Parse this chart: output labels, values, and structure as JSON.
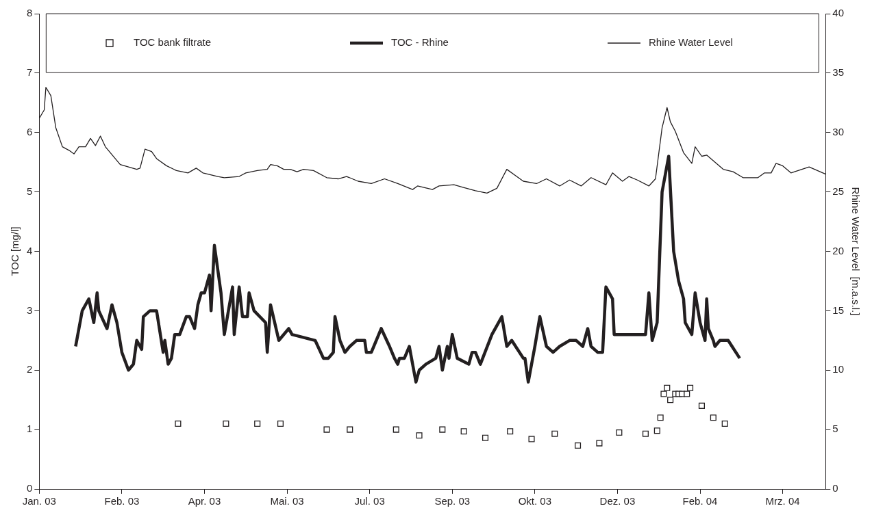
{
  "chart_data": {
    "type": "line",
    "ylabel": "TOC [mg/l]",
    "y2label": "Rhine Water Level  [m.a.s.l.]",
    "xlim": [
      "2003-01-01",
      "2004-04-21"
    ],
    "xticks": [
      {
        "value": "2003-01-01",
        "label": "Jan. 03"
      },
      {
        "value": "2003-02-20",
        "label": "Feb. 03"
      },
      {
        "value": "2003-04-11",
        "label": "Apr. 03"
      },
      {
        "value": "2003-05-31",
        "label": "Mai. 03"
      },
      {
        "value": "2003-07-20",
        "label": "Jul. 03"
      },
      {
        "value": "2003-09-08",
        "label": "Sep. 03"
      },
      {
        "value": "2003-10-28",
        "label": "Okt. 03"
      },
      {
        "value": "2003-12-17",
        "label": "Dez. 03"
      },
      {
        "value": "2004-02-05",
        "label": "Feb. 04"
      },
      {
        "value": "2004-03-26",
        "label": "Mrz. 04"
      }
    ],
    "ylim": [
      0,
      8
    ],
    "yticks": [
      0,
      1,
      2,
      3,
      4,
      5,
      6,
      7,
      8
    ],
    "y2lim": [
      0,
      40
    ],
    "y2ticks": [
      0,
      5,
      10,
      15,
      20,
      25,
      30,
      35,
      40
    ],
    "grid": false,
    "legend": "top",
    "series": [
      {
        "name": "TOC bank filtrate",
        "type": "scatter",
        "marker": "square",
        "color": "#231f20",
        "x": [
          "2003-03-26",
          "2003-04-24",
          "2003-05-13",
          "2003-05-27",
          "2003-06-24",
          "2003-07-08",
          "2003-08-05",
          "2003-08-19",
          "2003-09-02",
          "2003-09-15",
          "2003-09-28",
          "2003-10-13",
          "2003-10-26",
          "2003-11-09",
          "2003-11-23",
          "2003-12-06",
          "2003-12-18",
          "2004-01-03",
          "2004-01-10",
          "2004-01-12",
          "2004-01-14",
          "2004-01-16",
          "2004-01-18",
          "2004-01-21",
          "2004-01-23",
          "2004-01-25",
          "2004-01-28",
          "2004-01-30",
          "2004-02-06",
          "2004-02-13",
          "2004-02-20"
        ],
        "values": [
          1.1,
          1.1,
          1.1,
          1.1,
          1.0,
          1.0,
          1.0,
          0.9,
          1.0,
          0.97,
          0.86,
          0.97,
          0.84,
          0.93,
          0.73,
          0.77,
          0.95,
          0.93,
          0.98,
          1.2,
          1.6,
          1.7,
          1.5,
          1.6,
          1.6,
          1.6,
          1.6,
          1.7,
          1.4,
          1.2,
          1.1
        ]
      },
      {
        "name": "TOC - Rhine",
        "type": "line",
        "marker": "none",
        "color": "#231f20",
        "x": [
          "2003-01-23",
          "2003-01-27",
          "2003-01-31",
          "2003-02-03",
          "2003-02-05",
          "2003-02-06",
          "2003-02-11",
          "2003-02-14",
          "2003-02-17",
          "2003-02-20",
          "2003-02-24",
          "2003-02-27",
          "2003-03-01",
          "2003-03-04",
          "2003-03-05",
          "2003-03-09",
          "2003-03-13",
          "2003-03-17",
          "2003-03-18",
          "2003-03-20",
          "2003-03-22",
          "2003-03-24",
          "2003-03-27",
          "2003-03-31",
          "2003-04-02",
          "2003-04-05",
          "2003-04-07",
          "2003-04-09",
          "2003-04-11",
          "2003-04-14",
          "2003-04-15",
          "2003-04-17",
          "2003-04-21",
          "2003-04-23",
          "2003-04-28",
          "2003-04-29",
          "2003-05-02",
          "2003-05-04",
          "2003-05-07",
          "2003-05-08",
          "2003-05-11",
          "2003-05-18",
          "2003-05-19",
          "2003-05-21",
          "2003-05-26",
          "2003-06-01",
          "2003-06-03",
          "2003-06-17",
          "2003-06-22",
          "2003-06-25",
          "2003-06-28",
          "2003-06-29",
          "2003-07-02",
          "2003-07-05",
          "2003-07-08",
          "2003-07-12",
          "2003-07-17",
          "2003-07-18",
          "2003-07-21",
          "2003-07-27",
          "2003-08-01",
          "2003-08-04",
          "2003-08-06",
          "2003-08-07",
          "2003-08-10",
          "2003-08-13",
          "2003-08-15",
          "2003-08-17",
          "2003-08-19",
          "2003-08-23",
          "2003-08-29",
          "2003-08-31",
          "2003-09-02",
          "2003-09-05",
          "2003-09-06",
          "2003-09-08",
          "2003-09-11",
          "2003-09-18",
          "2003-09-20",
          "2003-09-22",
          "2003-09-25",
          "2003-10-02",
          "2003-10-08",
          "2003-10-11",
          "2003-10-14",
          "2003-10-21",
          "2003-10-22",
          "2003-10-24",
          "2003-10-28",
          "2003-10-31",
          "2003-11-04",
          "2003-11-08",
          "2003-11-12",
          "2003-11-18",
          "2003-11-22",
          "2003-11-26",
          "2003-11-29",
          "2003-12-01",
          "2003-12-05",
          "2003-12-08",
          "2003-12-10",
          "2003-12-14",
          "2003-12-15",
          "2004-01-03",
          "2004-01-05",
          "2004-01-07",
          "2004-01-10",
          "2004-01-13",
          "2004-01-17",
          "2004-01-20",
          "2004-01-23",
          "2004-01-26",
          "2004-01-27",
          "2004-01-31",
          "2004-02-02",
          "2004-02-05",
          "2004-02-08",
          "2004-02-09",
          "2004-02-10",
          "2004-02-13",
          "2004-02-14",
          "2004-02-17",
          "2004-02-22",
          "2004-02-29"
        ],
        "values": [
          2.4,
          3.0,
          3.2,
          2.8,
          3.3,
          3.0,
          2.7,
          3.1,
          2.8,
          2.3,
          2.0,
          2.1,
          2.5,
          2.35,
          2.9,
          3.0,
          3.0,
          2.3,
          2.5,
          2.1,
          2.2,
          2.6,
          2.6,
          2.9,
          2.9,
          2.7,
          3.1,
          3.3,
          3.3,
          3.6,
          3.0,
          4.1,
          3.3,
          2.6,
          3.4,
          2.6,
          3.4,
          2.9,
          2.9,
          3.3,
          3.0,
          2.8,
          2.3,
          3.1,
          2.5,
          2.7,
          2.6,
          2.5,
          2.2,
          2.2,
          2.3,
          2.9,
          2.5,
          2.3,
          2.4,
          2.5,
          2.5,
          2.3,
          2.3,
          2.7,
          2.4,
          2.2,
          2.1,
          2.2,
          2.2,
          2.4,
          2.1,
          1.8,
          2.0,
          2.1,
          2.2,
          2.4,
          2.0,
          2.4,
          2.2,
          2.6,
          2.2,
          2.1,
          2.3,
          2.3,
          2.1,
          2.6,
          2.9,
          2.4,
          2.5,
          2.2,
          2.2,
          1.8,
          2.4,
          2.9,
          2.4,
          2.3,
          2.4,
          2.5,
          2.5,
          2.4,
          2.7,
          2.4,
          2.3,
          2.3,
          3.4,
          3.2,
          2.6,
          2.6,
          3.3,
          2.5,
          2.8,
          5.0,
          5.6,
          4.0,
          3.5,
          3.2,
          2.8,
          2.6,
          3.3,
          2.8,
          2.5,
          3.2,
          2.7,
          2.5,
          2.4,
          2.5,
          2.5,
          2.2
        ]
      },
      {
        "name": "Rhine Water Level",
        "type": "line",
        "marker": "none",
        "axis": "y2",
        "color": "#231f20",
        "x": [
          "2003-01-01",
          "2003-01-04",
          "2003-01-05",
          "2003-01-08",
          "2003-01-11",
          "2003-01-15",
          "2003-01-19",
          "2003-01-22",
          "2003-01-25",
          "2003-01-29",
          "2003-02-01",
          "2003-02-04",
          "2003-02-07",
          "2003-02-10",
          "2003-02-19",
          "2003-03-01",
          "2003-03-03",
          "2003-03-06",
          "2003-03-10",
          "2003-03-13",
          "2003-03-19",
          "2003-03-25",
          "2003-04-01",
          "2003-04-06",
          "2003-04-10",
          "2003-04-19",
          "2003-04-23",
          "2003-05-02",
          "2003-05-06",
          "2003-05-13",
          "2003-05-19",
          "2003-05-21",
          "2003-05-25",
          "2003-05-29",
          "2003-06-02",
          "2003-06-06",
          "2003-06-10",
          "2003-06-16",
          "2003-06-24",
          "2003-07-01",
          "2003-07-06",
          "2003-07-13",
          "2003-07-21",
          "2003-07-29",
          "2003-08-06",
          "2003-08-15",
          "2003-08-18",
          "2003-08-27",
          "2003-08-31",
          "2003-09-09",
          "2003-09-14",
          "2003-09-22",
          "2003-09-29",
          "2003-10-05",
          "2003-10-11",
          "2003-10-21",
          "2003-10-29",
          "2003-11-04",
          "2003-11-12",
          "2003-11-18",
          "2003-11-25",
          "2003-12-01",
          "2003-12-10",
          "2003-12-14",
          "2003-12-20",
          "2003-12-24",
          "2003-12-29",
          "2004-01-05",
          "2004-01-09",
          "2004-01-13",
          "2004-01-16",
          "2004-01-18",
          "2004-01-21",
          "2004-01-26",
          "2004-01-31",
          "2004-02-02",
          "2004-02-06",
          "2004-02-09",
          "2004-02-19",
          "2004-02-25",
          "2004-03-02",
          "2004-03-11",
          "2004-03-15",
          "2004-03-19",
          "2004-03-22",
          "2004-03-26",
          "2004-03-31",
          "2004-04-11",
          "2004-04-21"
        ],
        "values": [
          31.2,
          31.9,
          33.8,
          33.1,
          30.4,
          28.8,
          28.5,
          28.2,
          28.8,
          28.8,
          29.5,
          28.9,
          29.7,
          28.8,
          27.3,
          26.9,
          27.0,
          28.6,
          28.4,
          27.8,
          27.2,
          26.8,
          26.6,
          27.0,
          26.6,
          26.3,
          26.2,
          26.3,
          26.6,
          26.8,
          26.9,
          27.3,
          27.2,
          26.9,
          26.9,
          26.7,
          26.9,
          26.8,
          26.2,
          26.1,
          26.3,
          25.9,
          25.7,
          26.1,
          25.7,
          25.2,
          25.5,
          25.2,
          25.5,
          25.6,
          25.4,
          25.1,
          24.9,
          25.3,
          26.9,
          25.9,
          25.7,
          26.1,
          25.5,
          26.0,
          25.5,
          26.2,
          25.6,
          26.6,
          25.9,
          26.3,
          26.0,
          25.5,
          26.1,
          30.4,
          32.1,
          30.9,
          30.1,
          28.3,
          27.4,
          28.8,
          28.0,
          28.1,
          26.9,
          26.7,
          26.2,
          26.2,
          26.6,
          26.6,
          27.4,
          27.2,
          26.6,
          27.1,
          26.5
        ]
      }
    ]
  }
}
